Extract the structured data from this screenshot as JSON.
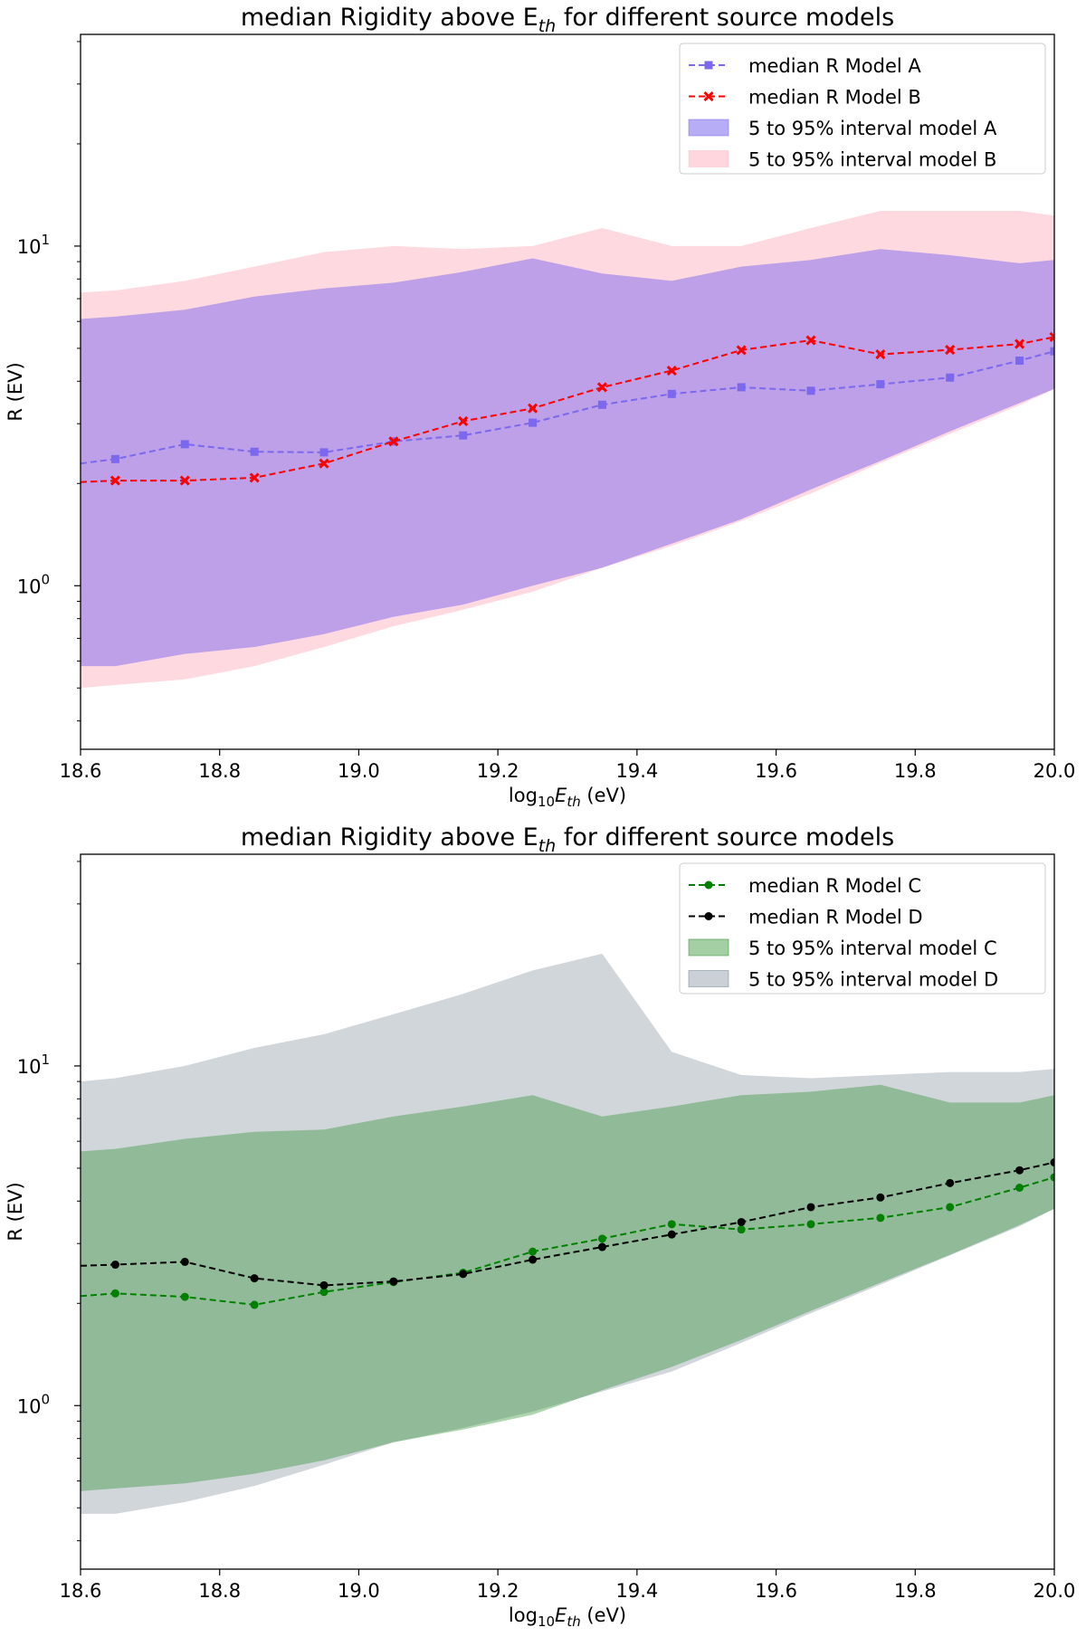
{
  "chart_data": [
    {
      "type": "line",
      "title_prefix": "median Rigidity above E",
      "title_sub": "th",
      "title_suffix": " for different source models",
      "xlabel_prefix": "log",
      "xlabel_sub1": "10",
      "xlabel_mid": "E",
      "xlabel_sub2": "th",
      "xlabel_suffix": " (eV)",
      "ylabel": "R (EV)",
      "xlim": [
        18.6,
        20.0
      ],
      "ylim": [
        0.33,
        42
      ],
      "yscale": "log",
      "xticks": [
        18.6,
        18.8,
        19.0,
        19.2,
        19.4,
        19.6,
        19.8,
        20.0
      ],
      "xtick_labels": [
        "18.6",
        "18.8",
        "19.0",
        "19.2",
        "19.4",
        "19.6",
        "19.8",
        "20.0"
      ],
      "ytick_major": [
        {
          "value": 1,
          "base": "10",
          "exp": "0"
        },
        {
          "value": 10,
          "base": "10",
          "exp": "1"
        }
      ],
      "legend_position": "upper right",
      "x": [
        18.6,
        18.65,
        18.75,
        18.85,
        18.95,
        19.05,
        19.15,
        19.25,
        19.35,
        19.45,
        19.55,
        19.65,
        19.75,
        19.85,
        19.95,
        20.0
      ],
      "bands": [
        {
          "name": "5 to 95% interval model B",
          "color": "#ffc0cb",
          "opacity": 0.6,
          "upper": [
            7.3,
            7.4,
            7.9,
            8.7,
            9.6,
            10.0,
            9.8,
            10.0,
            11.3,
            10.0,
            10.0,
            11.3,
            12.7,
            12.7,
            12.7,
            12.3
          ],
          "lower": [
            0.5,
            0.51,
            0.53,
            0.58,
            0.66,
            0.76,
            0.85,
            0.96,
            1.13,
            1.31,
            1.55,
            1.87,
            2.3,
            2.8,
            3.4,
            3.8
          ]
        },
        {
          "name": "5 to 95% interval model A",
          "color": "#7b68ee",
          "opacity": 0.5,
          "upper": [
            6.1,
            6.2,
            6.5,
            7.1,
            7.5,
            7.8,
            8.4,
            9.2,
            8.3,
            7.9,
            8.7,
            9.1,
            9.8,
            9.4,
            8.9,
            9.1
          ],
          "lower": [
            0.58,
            0.58,
            0.63,
            0.66,
            0.72,
            0.81,
            0.88,
            1.0,
            1.13,
            1.33,
            1.57,
            1.92,
            2.33,
            2.85,
            3.45,
            3.8
          ]
        }
      ],
      "series": [
        {
          "name": "median R Model A",
          "color": "#7b68ee",
          "marker": "square",
          "values": [
            2.29,
            2.36,
            2.61,
            2.48,
            2.47,
            2.66,
            2.77,
            3.02,
            3.41,
            3.67,
            3.84,
            3.75,
            3.92,
            4.1,
            4.6,
            4.9
          ]
        },
        {
          "name": "median R Model B",
          "color": "#ff0000",
          "marker": "x",
          "values": [
            2.02,
            2.04,
            2.04,
            2.08,
            2.29,
            2.66,
            3.05,
            3.33,
            3.84,
            4.3,
            4.94,
            5.28,
            4.8,
            4.95,
            5.15,
            5.4
          ]
        }
      ],
      "legend": [
        {
          "kind": "line",
          "ref": "series",
          "index": 0,
          "label": "median R Model A"
        },
        {
          "kind": "line",
          "ref": "series",
          "index": 1,
          "label": "median R Model B"
        },
        {
          "kind": "band",
          "ref": "bands",
          "index": 1,
          "label": "5 to 95% interval model A"
        },
        {
          "kind": "band",
          "ref": "bands",
          "index": 0,
          "label": "5 to 95% interval model B"
        }
      ]
    },
    {
      "type": "line",
      "title_prefix": "median Rigidity above E",
      "title_sub": "th",
      "title_suffix": " for different source models",
      "xlabel_prefix": "log",
      "xlabel_sub1": "10",
      "xlabel_mid": "E",
      "xlabel_sub2": "th",
      "xlabel_suffix": " (eV)",
      "ylabel": "R (EV)",
      "xlim": [
        18.6,
        20.0
      ],
      "ylim": [
        0.33,
        42
      ],
      "yscale": "log",
      "xticks": [
        18.6,
        18.8,
        19.0,
        19.2,
        19.4,
        19.6,
        19.8,
        20.0
      ],
      "xtick_labels": [
        "18.6",
        "18.8",
        "19.0",
        "19.2",
        "19.4",
        "19.6",
        "19.8",
        "20.0"
      ],
      "ytick_major": [
        {
          "value": 1,
          "base": "10",
          "exp": "0"
        },
        {
          "value": 10,
          "base": "10",
          "exp": "1"
        }
      ],
      "legend_position": "upper right",
      "x": [
        18.6,
        18.65,
        18.75,
        18.85,
        18.95,
        19.05,
        19.15,
        19.25,
        19.35,
        19.45,
        19.55,
        19.65,
        19.75,
        19.85,
        19.95,
        20.0
      ],
      "bands": [
        {
          "name": "5 to 95% interval model D",
          "color": "#708090",
          "opacity": 0.32,
          "upper": [
            9.0,
            9.2,
            10.0,
            11.3,
            12.4,
            14.2,
            16.3,
            19.1,
            21.4,
            11.0,
            9.4,
            9.2,
            9.4,
            9.6,
            9.6,
            9.8
          ],
          "lower": [
            0.48,
            0.48,
            0.52,
            0.58,
            0.67,
            0.78,
            0.86,
            0.96,
            1.1,
            1.26,
            1.53,
            1.87,
            2.27,
            2.77,
            3.37,
            3.8
          ]
        },
        {
          "name": "5 to 95% interval model C",
          "color": "#228b22",
          "opacity": 0.36,
          "upper": [
            5.6,
            5.7,
            6.1,
            6.4,
            6.5,
            7.1,
            7.6,
            8.2,
            7.1,
            7.6,
            8.2,
            8.4,
            8.8,
            7.8,
            7.8,
            8.2
          ],
          "lower": [
            0.56,
            0.57,
            0.59,
            0.63,
            0.69,
            0.78,
            0.85,
            0.94,
            1.11,
            1.3,
            1.56,
            1.9,
            2.3,
            2.78,
            3.4,
            3.8
          ]
        }
      ],
      "series": [
        {
          "name": "median R Model C",
          "color": "#008000",
          "marker": "circle",
          "values": [
            2.1,
            2.14,
            2.09,
            1.98,
            2.16,
            2.31,
            2.46,
            2.84,
            3.1,
            3.42,
            3.3,
            3.42,
            3.57,
            3.84,
            4.38,
            4.7
          ]
        },
        {
          "name": "median R Model D",
          "color": "#000000",
          "marker": "circle",
          "values": [
            2.58,
            2.6,
            2.65,
            2.37,
            2.26,
            2.32,
            2.44,
            2.69,
            2.93,
            3.19,
            3.47,
            3.84,
            4.1,
            4.52,
            4.93,
            5.2
          ]
        }
      ],
      "legend": [
        {
          "kind": "line",
          "ref": "series",
          "index": 0,
          "label": "median R Model C"
        },
        {
          "kind": "line",
          "ref": "series",
          "index": 1,
          "label": "median R Model D"
        },
        {
          "kind": "band",
          "ref": "bands",
          "index": 1,
          "label": "5 to 95% interval model C"
        },
        {
          "kind": "band",
          "ref": "bands",
          "index": 0,
          "label": "5 to 95% interval model D"
        }
      ]
    }
  ]
}
